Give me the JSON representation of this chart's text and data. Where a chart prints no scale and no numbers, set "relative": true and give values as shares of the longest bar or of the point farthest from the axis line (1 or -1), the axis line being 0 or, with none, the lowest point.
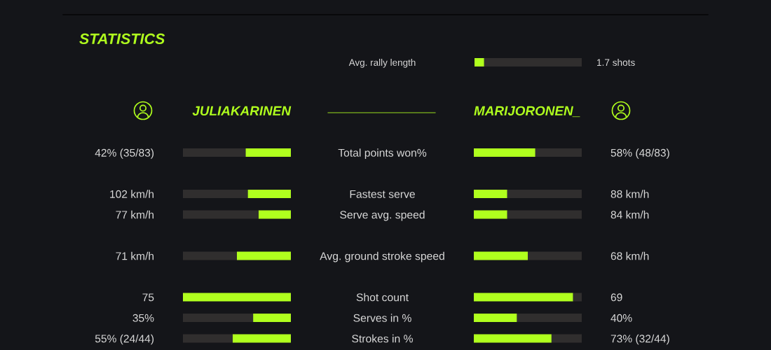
{
  "chart_data": [
    {
      "type": "bar",
      "orientation": "horizontal",
      "stacked": true,
      "relative": true,
      "tick_labels": "y",
      "categories": [
        "Avg. rally length"
      ],
      "series": [
        {
          "color": "#b0ff1e",
          "values": [
            0.09
          ]
        },
        {
          "color": "#302e2e",
          "values": [
            0.91
          ]
        }
      ],
      "annotations": [
        "1.7 shots"
      ]
    },
    {
      "type": "bar",
      "title": "STATISTICS",
      "orientation": "horizontal",
      "stacked": true,
      "relative": true,
      "tick_labels": "y",
      "categories": [
        "Total points won%",
        null,
        "Fastest serve",
        "Serve avg. speed",
        null,
        "Avg. ground stroke speed",
        null,
        "Shot count",
        "Serves in %",
        "Strokes in %"
      ],
      "series": [
        {
          "name": "JULIAKARINEN",
          "color": "#b0ff1e",
          "values": [
            -0.42,
            null,
            -0.4,
            -0.3,
            null,
            -0.5,
            null,
            -1.0,
            -0.35,
            -0.54
          ]
        },
        {
          "color": "#302e2e",
          "values": [
            -0.58,
            null,
            -0.6,
            -0.7,
            null,
            -0.5,
            null,
            null,
            -0.65,
            -0.46
          ]
        }
      ],
      "annotations": [
        "42% (35/83)",
        "102 km/h",
        "77 km/h",
        "71 km/h",
        "75",
        "35%",
        "55% (24/44)"
      ]
    },
    {
      "type": "bar",
      "orientation": "horizontal",
      "stacked": true,
      "relative": true,
      "tick_labels": false,
      "categories": [
        null,
        null,
        null,
        null,
        null,
        null,
        null,
        null,
        null,
        null
      ],
      "series": [
        {
          "name": "MARIJORONEN_",
          "color": "#b0ff1e",
          "values": [
            0.57,
            null,
            0.31,
            0.31,
            null,
            0.5,
            null,
            0.92,
            0.4,
            0.72
          ]
        },
        {
          "color": "#302e2e",
          "values": [
            0.43,
            null,
            0.69,
            0.69,
            null,
            0.5,
            null,
            0.08,
            0.6,
            0.28
          ]
        }
      ],
      "annotations": [
        "58% (48/83)",
        "88 km/h",
        "84 km/h",
        "68 km/h",
        "69",
        "40%",
        "73% (32/44)"
      ]
    }
  ]
}
